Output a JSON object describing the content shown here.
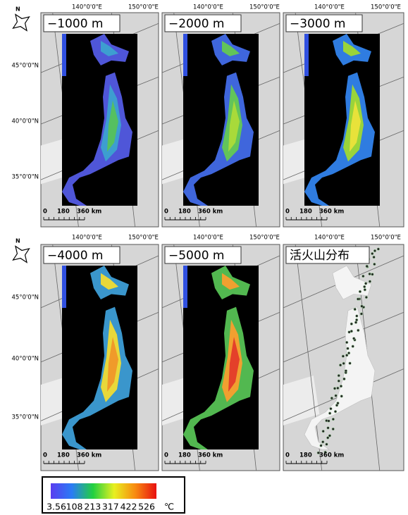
{
  "north_label": "N",
  "panels": [
    {
      "title": "−1000 m"
    },
    {
      "title": "−2000 m"
    },
    {
      "title": "−3000 m"
    },
    {
      "title": "−4000 m"
    },
    {
      "title": "−5000 m"
    },
    {
      "title": "活火山分布"
    }
  ],
  "lon_labels": [
    "140°0'0\"E",
    "150°0'0\"E"
  ],
  "lat_labels": [
    "45°0'0\"N",
    "40°0'0\"N",
    "35°0'0\"N"
  ],
  "scale_bar": {
    "labels": [
      "0",
      "180",
      "360 km"
    ]
  },
  "colorbar": {
    "ticks": [
      3.56,
      108,
      213,
      317,
      422,
      526
    ],
    "unit": "℃"
  }
}
